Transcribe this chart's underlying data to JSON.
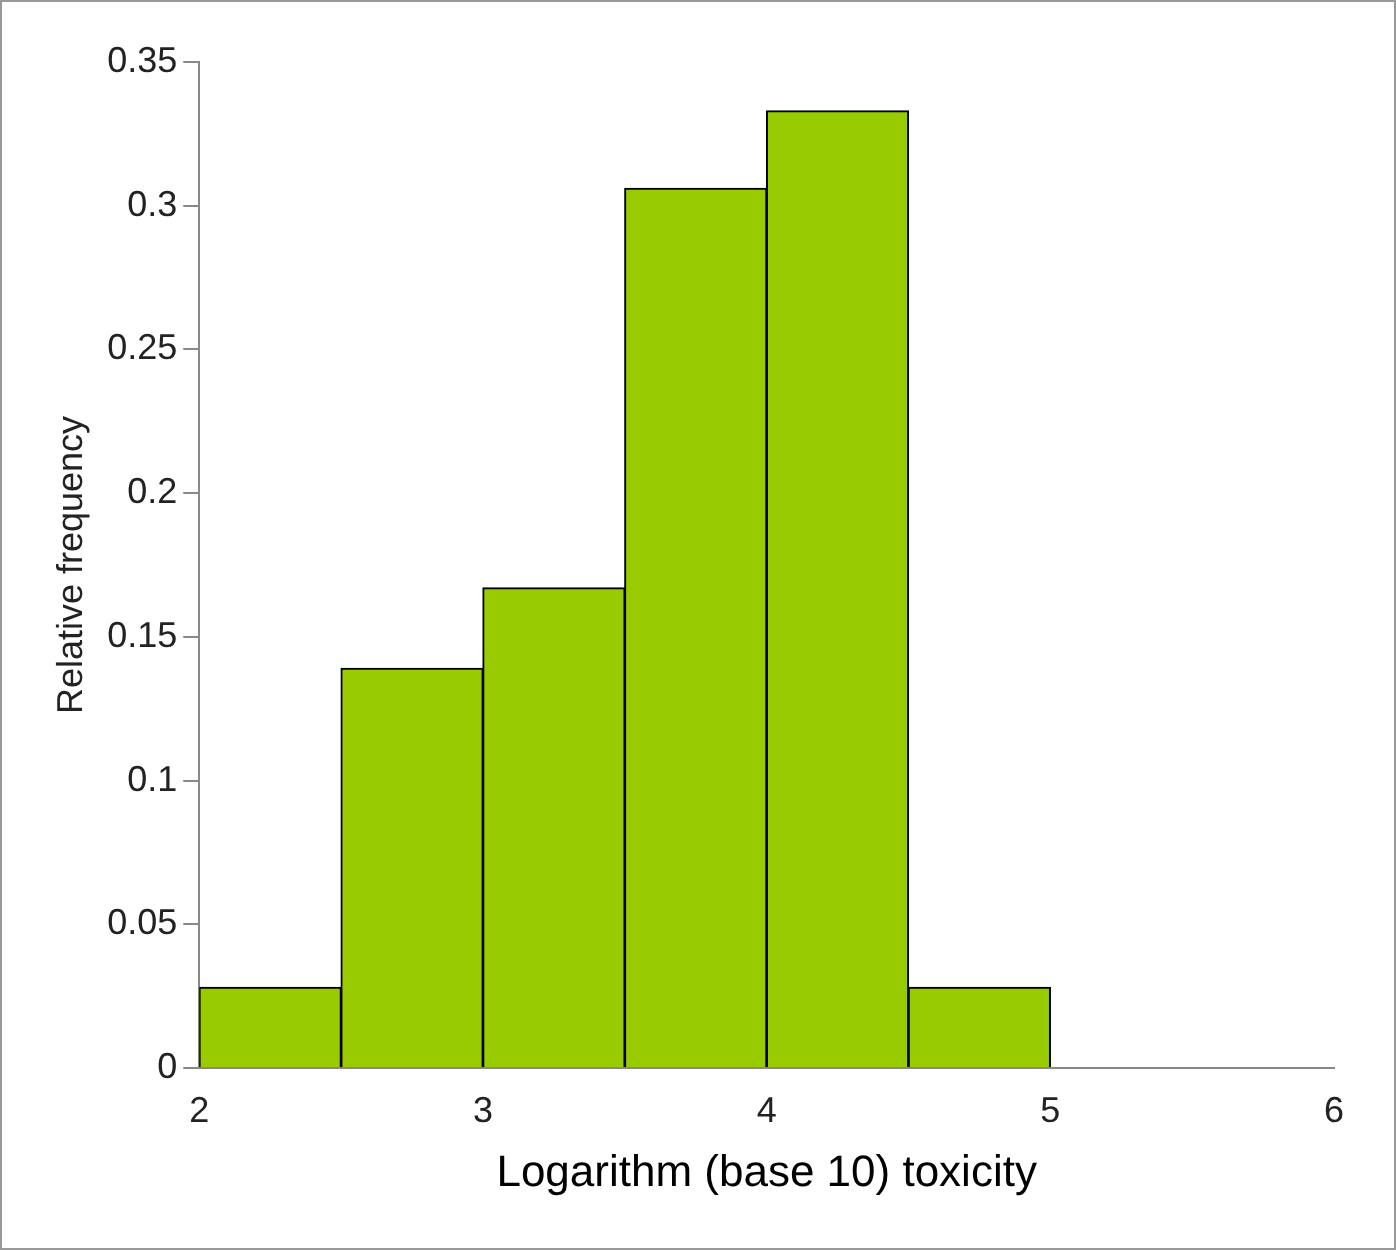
{
  "chart_data": {
    "type": "histogram",
    "xlabel": "Logarithm (base 10) toxicity",
    "ylabel": "Relative frequency",
    "bins": [
      2,
      2.5,
      3,
      3.5,
      4,
      4.5,
      5,
      5.5,
      6
    ],
    "values": [
      0.028,
      0.139,
      0.167,
      0.306,
      0.333,
      0.028,
      0,
      0
    ],
    "color": "#99cc00",
    "xlim": [
      2,
      6
    ],
    "xticks": [
      2,
      3,
      4,
      5,
      6
    ],
    "ylim": [
      0,
      0.35
    ],
    "yticks": [
      0,
      0.05,
      0.1,
      0.15,
      0.2,
      0.25,
      0.3,
      0.35
    ],
    "grid": false,
    "legend": false
  }
}
